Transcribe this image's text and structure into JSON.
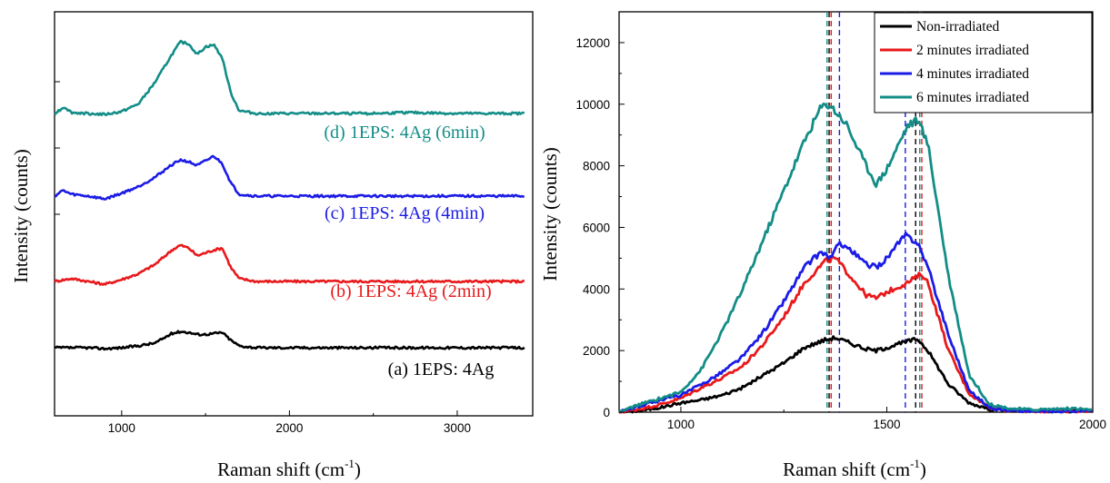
{
  "chart_data": [
    {
      "type": "line",
      "panel": "left",
      "xlabel_main": "Raman shift (cm",
      "xlabel_sup": "-1",
      "xlabel_end": ")",
      "ylabel": "Intensity (counts)",
      "xlim": [
        600,
        3450
      ],
      "x_ticks": [
        "1000",
        "2000",
        "3000"
      ],
      "y_ticks_labeled": false,
      "grid": false,
      "series": [
        {
          "annotation": "(a) 1EPS: 4Ag",
          "color": "#000000",
          "offset": 0,
          "x": [
            600,
            700,
            800,
            900,
            1000,
            1100,
            1200,
            1300,
            1350,
            1400,
            1450,
            1500,
            1550,
            1600,
            1650,
            1700,
            1800,
            2000,
            2500,
            3000,
            3400
          ],
          "y": [
            0,
            0,
            0,
            -1,
            0,
            2,
            5,
            15,
            17,
            16,
            14,
            14,
            15,
            16,
            8,
            2,
            0,
            0,
            0,
            0,
            0
          ]
        },
        {
          "annotation": "(b) 1EPS: 4Ag (2min)",
          "color": "#e8191b",
          "offset": 1,
          "x": [
            600,
            700,
            800,
            900,
            1000,
            1100,
            1200,
            1300,
            1350,
            1400,
            1450,
            1500,
            1550,
            1600,
            1650,
            1700,
            1800,
            2000,
            2500,
            3000,
            3400
          ],
          "y": [
            0,
            3,
            0,
            -3,
            2,
            8,
            18,
            33,
            38,
            35,
            27,
            30,
            33,
            35,
            15,
            3,
            0,
            0,
            0,
            0,
            0
          ]
        },
        {
          "annotation": "(c) 1EPS: 4Ag (4min)",
          "color": "#1b1be6",
          "offset": 2,
          "x": [
            600,
            650,
            700,
            800,
            900,
            1000,
            1100,
            1200,
            1300,
            1350,
            1400,
            1450,
            1500,
            1550,
            1600,
            1650,
            1700,
            1800,
            2000,
            2500,
            3000,
            3400
          ],
          "y": [
            0,
            6,
            2,
            0,
            -3,
            3,
            10,
            20,
            33,
            38,
            36,
            32,
            37,
            42,
            34,
            14,
            2,
            0,
            0,
            0,
            0,
            0
          ]
        },
        {
          "annotation": "(d) 1EPS: 4Ag (6min)",
          "color": "#138d87",
          "offset": 3,
          "x": [
            600,
            660,
            700,
            800,
            900,
            1000,
            1100,
            1200,
            1300,
            1350,
            1400,
            1450,
            1500,
            1550,
            1600,
            1650,
            1700,
            1800,
            2000,
            2500,
            2700,
            3000,
            3400
          ],
          "y": [
            0,
            7,
            1,
            0,
            -1,
            2,
            10,
            33,
            62,
            75,
            73,
            62,
            70,
            72,
            58,
            22,
            3,
            0,
            0,
            0,
            1,
            0,
            0
          ]
        }
      ]
    },
    {
      "type": "line",
      "panel": "right",
      "xlabel_main": "Raman shift (cm",
      "xlabel_sup": "-1",
      "xlabel_end": ")",
      "ylabel": "Intensity (counts)",
      "xlim": [
        850,
        2000
      ],
      "ylim": [
        0,
        13000
      ],
      "x_ticks": [
        "1000",
        "1500",
        "2000"
      ],
      "y_ticks": [
        "0",
        "2000",
        "4000",
        "6000",
        "8000",
        "10000",
        "12000"
      ],
      "legend_position": "top-right",
      "grid": false,
      "series": [
        {
          "name": "Non-irradiated",
          "color": "#000000",
          "peaks": [
            1360,
            1570
          ],
          "x": [
            850,
            900,
            950,
            1000,
            1050,
            1100,
            1150,
            1200,
            1250,
            1300,
            1350,
            1375,
            1400,
            1450,
            1475,
            1500,
            1550,
            1575,
            1600,
            1650,
            1700,
            1750,
            1800,
            1850,
            1900,
            2000
          ],
          "y": [
            0,
            50,
            150,
            300,
            400,
            550,
            800,
            1200,
            1600,
            2100,
            2350,
            2420,
            2300,
            2050,
            2000,
            2100,
            2300,
            2380,
            2000,
            900,
            300,
            100,
            50,
            30,
            20,
            50
          ]
        },
        {
          "name": "2 minutes irradiated",
          "color": "#e8191b",
          "peaks": [
            1365,
            1585
          ],
          "x": [
            850,
            900,
            950,
            1000,
            1050,
            1100,
            1150,
            1200,
            1250,
            1300,
            1350,
            1375,
            1400,
            1450,
            1475,
            1500,
            1550,
            1585,
            1600,
            1650,
            1700,
            1750,
            1800,
            1850,
            1900,
            2000
          ],
          "y": [
            0,
            100,
            250,
            450,
            800,
            1100,
            1500,
            2200,
            3100,
            4200,
            4900,
            5000,
            4600,
            3800,
            3700,
            3900,
            4200,
            4500,
            4200,
            2000,
            600,
            150,
            50,
            30,
            20,
            50
          ]
        },
        {
          "name": "4 minutes irradiated",
          "color": "#1b1be6",
          "peaks": [
            1385,
            1545
          ],
          "x": [
            850,
            900,
            950,
            1000,
            1050,
            1100,
            1150,
            1200,
            1250,
            1300,
            1340,
            1365,
            1385,
            1400,
            1450,
            1475,
            1500,
            1545,
            1575,
            1600,
            1650,
            1700,
            1750,
            1800,
            1850,
            1900,
            2000
          ],
          "y": [
            0,
            200,
            400,
            550,
            900,
            1300,
            1800,
            2600,
            3600,
            4700,
            5200,
            5000,
            5500,
            5400,
            4800,
            4700,
            5000,
            5750,
            5500,
            4700,
            2500,
            700,
            150,
            50,
            30,
            20,
            50
          ]
        },
        {
          "name": "6 minutes irradiated",
          "color": "#138d87",
          "peaks": [
            1355,
            1580
          ],
          "x": [
            850,
            900,
            950,
            1000,
            1050,
            1100,
            1150,
            1200,
            1250,
            1300,
            1340,
            1360,
            1400,
            1450,
            1475,
            1500,
            1550,
            1575,
            1600,
            1650,
            1700,
            1750,
            1800,
            1850,
            1900,
            1950,
            2000
          ],
          "y": [
            0,
            250,
            450,
            650,
            1400,
            2600,
            4000,
            5600,
            7200,
            8800,
            9900,
            10000,
            9400,
            8000,
            7400,
            7900,
            9300,
            9500,
            8700,
            4400,
            1200,
            250,
            120,
            80,
            100,
            120,
            80
          ]
        }
      ]
    }
  ]
}
